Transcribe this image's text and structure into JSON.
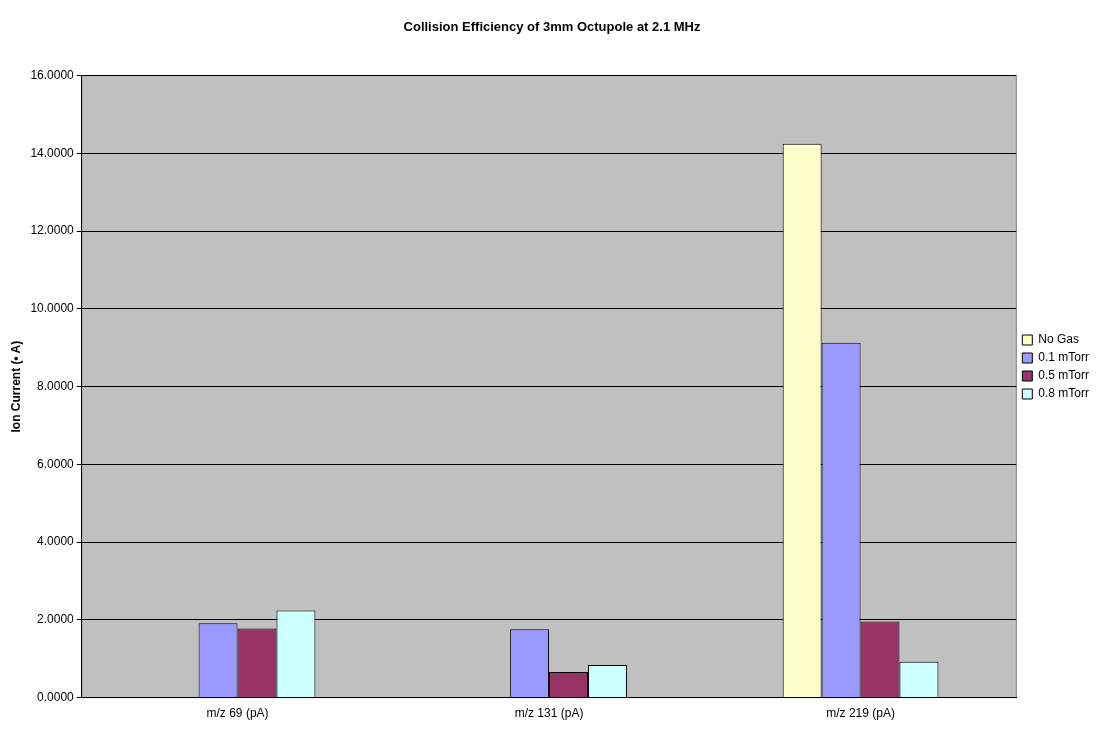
{
  "chart_data": {
    "type": "bar",
    "title": "Collision Efficiency of 3mm Octupole at 2.1 MHz",
    "ylabel": "Ion Current (• A)",
    "categories": [
      "m/z 69 (pA)",
      "m/z 131 (pA)",
      "m/z 219 (pA)"
    ],
    "series": [
      {
        "name": "No Gas",
        "color": "#ffffcc",
        "values": [
          0,
          0,
          14.25
        ]
      },
      {
        "name": "0.1 mTorr",
        "color": "#9999ff",
        "values": [
          1.91,
          1.76,
          9.13
        ]
      },
      {
        "name": "0.5 mTorr",
        "color": "#993366",
        "values": [
          1.78,
          0.66,
          1.96
        ]
      },
      {
        "name": "0.8 mTorr",
        "color": "#ccffff",
        "values": [
          2.24,
          0.84,
          0.92
        ]
      }
    ],
    "ylim": [
      0,
      16
    ],
    "yticks": [
      {
        "value": 0,
        "label": "0.0000"
      },
      {
        "value": 2,
        "label": "2.0000"
      },
      {
        "value": 4,
        "label": "4.0000"
      },
      {
        "value": 6,
        "label": "6.0000"
      },
      {
        "value": 8,
        "label": "8.0000"
      },
      {
        "value": 10,
        "label": "10.0000"
      },
      {
        "value": 12,
        "label": "12.0000"
      },
      {
        "value": 14,
        "label": "14.0000"
      },
      {
        "value": 16,
        "label": "16.0000"
      }
    ],
    "grid": "y",
    "legend": "right"
  }
}
